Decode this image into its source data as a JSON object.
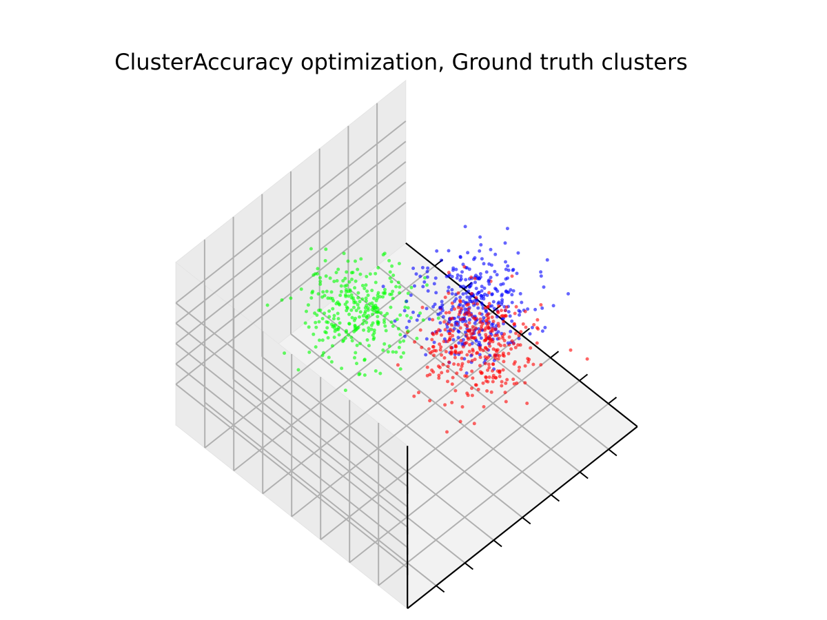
{
  "chart_data": {
    "type": "scatter",
    "projection": "3d",
    "title": "ClusterAccuracy optimization, Ground truth clusters",
    "xlabel": "",
    "ylabel": "",
    "zlabel": "",
    "grid": true,
    "show_tick_labels": false,
    "xlim": [
      -4,
      4
    ],
    "ylim": [
      -4,
      4
    ],
    "zlim": [
      -4,
      4
    ],
    "xticks": [
      -3,
      -2,
      -1,
      0,
      1,
      2,
      3
    ],
    "yticks": [
      -3,
      -2,
      -1,
      0,
      1,
      2,
      3
    ],
    "zticks": [
      -2,
      -1,
      0,
      1,
      2
    ],
    "view": {
      "elev": 45,
      "azim": 45
    },
    "series": [
      {
        "color": "#ff0000",
        "count": 350,
        "center": [
          1.2,
          -1.2,
          0.0
        ],
        "spread": 0.7
      },
      {
        "color": "#00ff00",
        "count": 300,
        "center": [
          -1.3,
          0.4,
          0.5
        ],
        "spread": 0.7
      },
      {
        "color": "#0000ff",
        "count": 350,
        "center": [
          0.0,
          -2.3,
          -0.6
        ],
        "spread": 0.7
      }
    ],
    "marker_size": 2.5,
    "marker_opacity": 0.6
  }
}
